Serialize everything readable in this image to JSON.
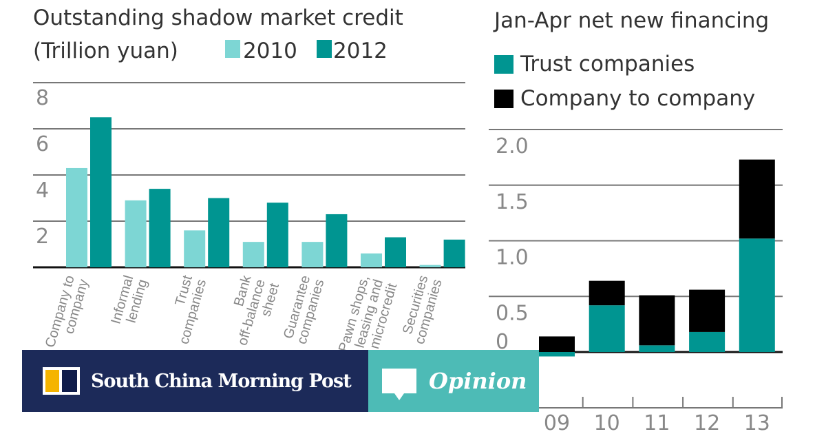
{
  "colors": {
    "c2010": "#7dd6d4",
    "c2012": "#009591",
    "trust": "#009591",
    "company": "#000000",
    "grid": "#666666",
    "banner_navy": "#1c2a59",
    "banner_teal": "#4dbbb6"
  },
  "chart_data": [
    {
      "type": "bar",
      "title": "Outstanding shadow market credit",
      "ylabel": "(Trillion yuan)",
      "categories": [
        "Company to company",
        "Informal lending",
        "Trust companies",
        "Bank off-balance sheet",
        "Guarantee companies",
        "Pawn shops, leasing and microcredit",
        "Securities companies"
      ],
      "series": [
        {
          "name": "2010",
          "values": [
            4.3,
            2.9,
            1.6,
            1.1,
            1.1,
            0.6,
            0.1
          ]
        },
        {
          "name": "2012",
          "values": [
            6.5,
            3.4,
            3.0,
            2.8,
            2.3,
            1.3,
            1.2
          ]
        }
      ],
      "ylim": [
        0,
        8
      ],
      "yticks": [
        "2",
        "4",
        "6",
        "8"
      ],
      "grid": true,
      "legend": "top"
    },
    {
      "type": "bar",
      "stacked": true,
      "title": "Jan-Apr net new financing",
      "categories": [
        "09",
        "10",
        "11",
        "12",
        "13"
      ],
      "series": [
        {
          "name": "Trust companies",
          "values": [
            -0.04,
            0.42,
            0.06,
            0.18,
            1.02
          ]
        },
        {
          "name": "Company to company",
          "values": [
            0.14,
            0.22,
            0.45,
            0.38,
            0.71
          ]
        }
      ],
      "ylim": [
        0,
        2.0
      ],
      "yticks": [
        "0",
        "0.5",
        "1.0",
        "1.5",
        "2.0"
      ],
      "grid": true,
      "legend": "top"
    }
  ],
  "banner": {
    "brand": "South China Morning Post",
    "section": "Opinion"
  }
}
